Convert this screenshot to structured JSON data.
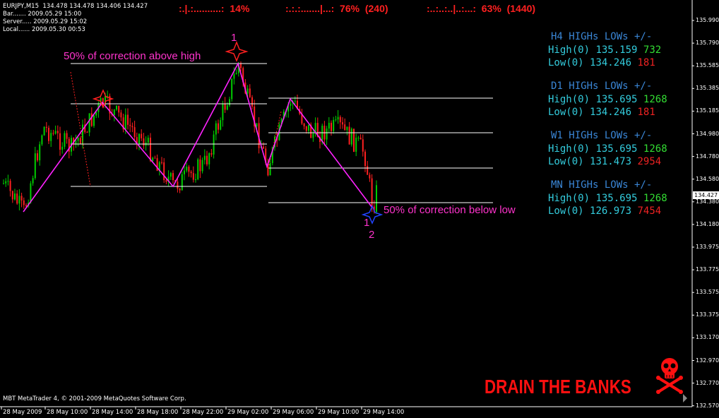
{
  "info": {
    "symbol_line": "EURJPY,M15  134.478 134.478 134.406 134.427",
    "bar_line": "Bar....... 2009.05.29 15:00",
    "server_line": "Server..... 2009.05.29 15:02",
    "local_line": "Local...... 2009.05.30 00:53"
  },
  "stats": [
    {
      "dots": ":.|.:..........:",
      "value": "14%"
    },
    {
      "dots": ":.:.:.......|...:",
      "value": "76%  (240)"
    },
    {
      "dots": ":..:..:..|..:...:",
      "value": "63%  (1440)"
    }
  ],
  "panels": [
    {
      "header": "H4 HIGHs LOWs +/-",
      "high_label": "High(0)",
      "high_value": "135.159",
      "high_diff": "732",
      "low_label": "Low(0)",
      "low_value": "134.246",
      "low_diff": "181"
    },
    {
      "header": "D1 HIGHs LOWs +/-",
      "high_label": "High(0)",
      "high_value": "135.695",
      "high_diff": "1268",
      "low_label": "Low(0)",
      "low_value": "134.246",
      "low_diff": "181"
    },
    {
      "header": "W1 HIGHs LOWs +/-",
      "high_label": "High(0)",
      "high_value": "135.695",
      "high_diff": "1268",
      "low_label": "Low(0)",
      "low_value": "131.473",
      "low_diff": "2954"
    },
    {
      "header": "MN HIGHs LOWs +/-",
      "high_label": "High(0)",
      "high_value": "135.695",
      "high_diff": "1268",
      "low_label": "Low(0)",
      "low_value": "126.973",
      "low_diff": "7454"
    }
  ],
  "annotations": {
    "above_high": "50% of correction above high",
    "below_low": "50% of correction below low",
    "label_1_top": "1",
    "label_1_bottom": "1",
    "label_2_bottom": "2"
  },
  "brand": "DRAIN THE BANKS",
  "copyright": "MBT MetaTrader 4, © 2001-2009 MetaQuotes Software Corp.",
  "current_price": "134.427",
  "price_ticks": [
    "135.990",
    "135.790",
    "135.585",
    "135.385",
    "135.185",
    "134.980",
    "134.780",
    "134.580",
    "134.380",
    "134.180",
    "133.975",
    "133.775",
    "133.575",
    "133.375",
    "133.170",
    "132.970",
    "132.770",
    "132.570"
  ],
  "time_ticks": [
    "28 May 2009",
    "28 May 10:00",
    "28 May 14:00",
    "28 May 18:00",
    "28 May 22:00",
    "29 May 02:00",
    "29 May 06:00",
    "29 May 10:00",
    "29 May 14:00"
  ],
  "colors": {
    "bull_candle": "#00cc00",
    "bear_candle": "#ff2020",
    "zigzag": "#ff22ff",
    "level_line": "#ffffff",
    "annotation": "#ff33cc"
  },
  "icons": [
    "star-high-marker-icon",
    "star-low-marker-icon",
    "skull-crossbones-icon"
  ]
}
